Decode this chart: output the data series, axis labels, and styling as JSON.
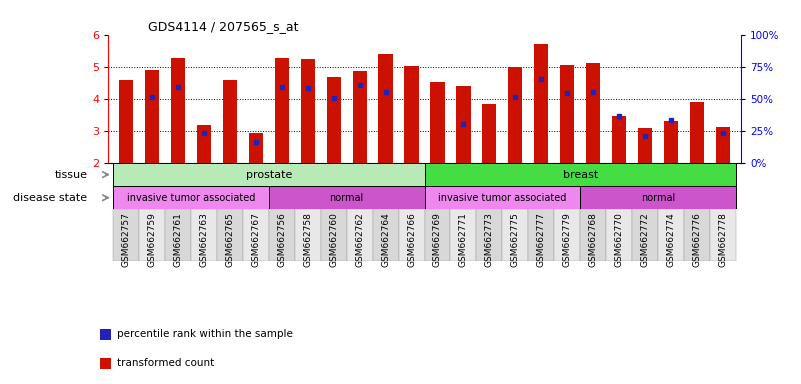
{
  "title": "GDS4114 / 207565_s_at",
  "samples": [
    "GSM662757",
    "GSM662759",
    "GSM662761",
    "GSM662763",
    "GSM662765",
    "GSM662767",
    "GSM662756",
    "GSM662758",
    "GSM662760",
    "GSM662762",
    "GSM662764",
    "GSM662766",
    "GSM662769",
    "GSM662771",
    "GSM662773",
    "GSM662775",
    "GSM662777",
    "GSM662779",
    "GSM662768",
    "GSM662770",
    "GSM662772",
    "GSM662774",
    "GSM662776",
    "GSM662778"
  ],
  "transformed_count": [
    4.57,
    4.9,
    5.28,
    3.17,
    4.57,
    2.95,
    5.28,
    5.25,
    4.67,
    4.88,
    5.38,
    5.02,
    4.52,
    4.4,
    3.83,
    4.98,
    5.72,
    5.05,
    5.13,
    3.47,
    3.08,
    3.32,
    3.9,
    3.12
  ],
  "percentile_rank": [
    null,
    4.05,
    4.38,
    2.93,
    null,
    2.65,
    4.38,
    4.35,
    4.03,
    4.42,
    4.22,
    null,
    null,
    3.2,
    null,
    4.07,
    4.62,
    4.18,
    4.2,
    3.45,
    2.85,
    3.35,
    null,
    2.93
  ],
  "ylim": [
    2.0,
    6.0
  ],
  "yticks": [
    2,
    3,
    4,
    5,
    6
  ],
  "right_yticks": [
    0,
    25,
    50,
    75,
    100
  ],
  "tissue_groups": [
    {
      "label": "prostate",
      "start": 0,
      "end": 11,
      "color": "#b8eab8"
    },
    {
      "label": "breast",
      "start": 12,
      "end": 23,
      "color": "#44dd44"
    }
  ],
  "disease_groups": [
    {
      "label": "invasive tumor associated",
      "start": 0,
      "end": 5,
      "color": "#ee88ee"
    },
    {
      "label": "normal",
      "start": 6,
      "end": 11,
      "color": "#cc55cc"
    },
    {
      "label": "invasive tumor associated",
      "start": 12,
      "end": 17,
      "color": "#ee88ee"
    },
    {
      "label": "normal",
      "start": 18,
      "end": 23,
      "color": "#cc55cc"
    }
  ],
  "bar_color": "#cc1100",
  "percentile_color": "#2222bb",
  "bar_width": 0.55,
  "legend_items": [
    {
      "label": "transformed count",
      "color": "#cc1100"
    },
    {
      "label": "percentile rank within the sample",
      "color": "#2222bb"
    }
  ]
}
